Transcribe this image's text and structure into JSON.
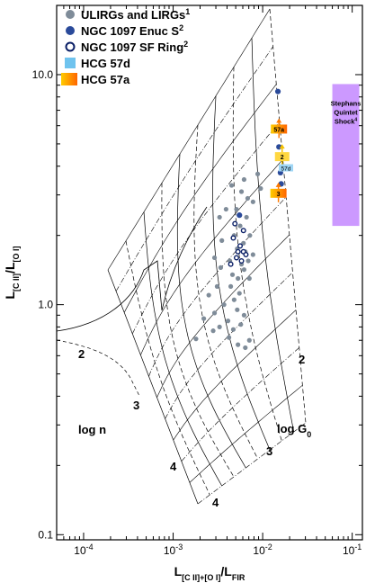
{
  "chart_data": {
    "type": "scatter",
    "xlabel": {
      "main": "L",
      "sub1": "[C II]+[O I]",
      "main2": "/L",
      "sub2": "FIR"
    },
    "ylabel": {
      "main": "L",
      "sub1": "[C II]",
      "main2": "/L",
      "sub2": "[O I]"
    },
    "x_scale": "log",
    "y_scale": "log",
    "xlim": [
      5e-05,
      0.13
    ],
    "ylim": [
      0.095,
      20
    ],
    "x_ticks": [
      {
        "value": 0.0001,
        "base": "10",
        "exp": "-4"
      },
      {
        "value": 0.001,
        "base": "10",
        "exp": "-3"
      },
      {
        "value": 0.01,
        "base": "10",
        "exp": "-2"
      },
      {
        "value": 0.1,
        "base": "10",
        "exp": "-1"
      }
    ],
    "y_ticks": [
      {
        "value": 0.1,
        "label": "0.1"
      },
      {
        "value": 1,
        "label": "1.0"
      },
      {
        "value": 10,
        "label": "10.0"
      }
    ],
    "legend": {
      "placement": "top-left",
      "items": [
        {
          "label": "ULIRGs and LIRGs",
          "sup": "1",
          "marker": "filled-circle",
          "color": "#7f8c99"
        },
        {
          "label": "NGC 1097 Enuc S",
          "sup": "2",
          "marker": "filled-circle",
          "color": "#2a4a9a"
        },
        {
          "label": "NGC 1097 SF Ring",
          "sup": "2",
          "marker": "open-circle",
          "color": "#0a1f66"
        },
        {
          "label": "HCG 57d",
          "sup": "",
          "marker": "square",
          "color": "#6fc3ee"
        },
        {
          "label": "HCG 57a",
          "sup": "",
          "marker": "square-gradient",
          "color": "#ff8c00"
        }
      ]
    },
    "series": [
      {
        "name": "ULIRGs and LIRGs",
        "color": "#7f8c99",
        "points": [
          [
            0.0045,
            3.3
          ],
          [
            0.0058,
            3.1
          ],
          [
            0.0062,
            3.5
          ],
          [
            0.0068,
            2.9
          ],
          [
            0.0088,
            3.7
          ],
          [
            0.0095,
            3.2
          ],
          [
            0.0051,
            2.6
          ],
          [
            0.0033,
            2.4
          ],
          [
            0.0039,
            2.6
          ],
          [
            0.0056,
            2.2
          ],
          [
            0.0066,
            2.4
          ],
          [
            0.0078,
            2.8
          ],
          [
            0.0072,
            2.0
          ],
          [
            0.0048,
            2.0
          ],
          [
            0.0035,
            1.9
          ],
          [
            0.0061,
            1.85
          ],
          [
            0.0064,
            1.7
          ],
          [
            0.0052,
            1.75
          ],
          [
            0.0043,
            1.55
          ],
          [
            0.0058,
            1.5
          ],
          [
            0.0069,
            1.55
          ],
          [
            0.0078,
            1.65
          ],
          [
            0.0029,
            1.6
          ],
          [
            0.0034,
            1.45
          ],
          [
            0.0046,
            1.35
          ],
          [
            0.0053,
            1.3
          ],
          [
            0.0062,
            1.42
          ],
          [
            0.0071,
            1.3
          ],
          [
            0.0031,
            1.2
          ],
          [
            0.0044,
            1.2
          ],
          [
            0.0025,
            1.1
          ],
          [
            0.0048,
            1.05
          ],
          [
            0.0055,
            1.12
          ],
          [
            0.0037,
            1.0
          ],
          [
            0.0052,
            0.95
          ],
          [
            0.0029,
            0.92
          ],
          [
            0.0022,
            0.87
          ],
          [
            0.0041,
            0.85
          ],
          [
            0.0062,
            0.9
          ],
          [
            0.0033,
            0.8
          ],
          [
            0.0047,
            0.78
          ],
          [
            0.0057,
            0.82
          ],
          [
            0.0028,
            0.77
          ],
          [
            0.0042,
            0.72
          ],
          [
            0.0018,
            0.71
          ],
          [
            0.0053,
            0.67
          ],
          [
            0.0064,
            0.65
          ],
          [
            0.0071,
            0.7
          ]
        ]
      },
      {
        "name": "NGC 1097 Enuc S",
        "color": "#2a4a9a",
        "points": [
          [
            0.0148,
            8.45
          ],
          [
            0.0055,
            2.45
          ],
          [
            0.0152,
            4.85
          ],
          [
            0.0158,
            3.75
          ],
          [
            0.0161,
            3.35
          ],
          [
            0.0153,
            3.1
          ]
        ]
      },
      {
        "name": "NGC 1097 SF Ring",
        "color": "#0a1f66",
        "points": [
          [
            0.0049,
            2.25
          ],
          [
            0.0061,
            2.1
          ],
          [
            0.0047,
            1.95
          ],
          [
            0.0056,
            1.8
          ],
          [
            0.0053,
            1.7
          ],
          [
            0.0061,
            1.7
          ],
          [
            0.0065,
            1.65
          ],
          [
            0.0051,
            1.6
          ],
          [
            0.0044,
            1.5
          ],
          [
            0.0058,
            1.55
          ]
        ]
      }
    ],
    "hcg_markers": [
      {
        "id": "57a",
        "label": "57a",
        "x": 0.0152,
        "y": 5.8,
        "kind": "a"
      },
      {
        "id": "57d",
        "label": "2",
        "x": 0.0165,
        "y": 4.4,
        "kind": "d"
      },
      {
        "id": "57d_lbl",
        "label": "57d",
        "x": 0.0182,
        "y": 3.9,
        "kind": "label"
      },
      {
        "id": "3",
        "label": "3",
        "x": 0.015,
        "y": 3.05,
        "kind": "a"
      }
    ],
    "shock_region": {
      "label_lines": [
        "Stephans",
        "Quintet",
        "Shock",
        "4"
      ],
      "x_range": [
        0.06,
        0.12
      ],
      "y_range": [
        2.2,
        9.1
      ],
      "color": "#cc99ff"
    },
    "grid_labels": {
      "log_n": {
        "text": "log n",
        "values": [
          "2",
          "3",
          "4"
        ]
      },
      "log_G0": {
        "text": "log G",
        "sub": "0",
        "values": [
          "2",
          "3",
          "4"
        ]
      }
    }
  }
}
